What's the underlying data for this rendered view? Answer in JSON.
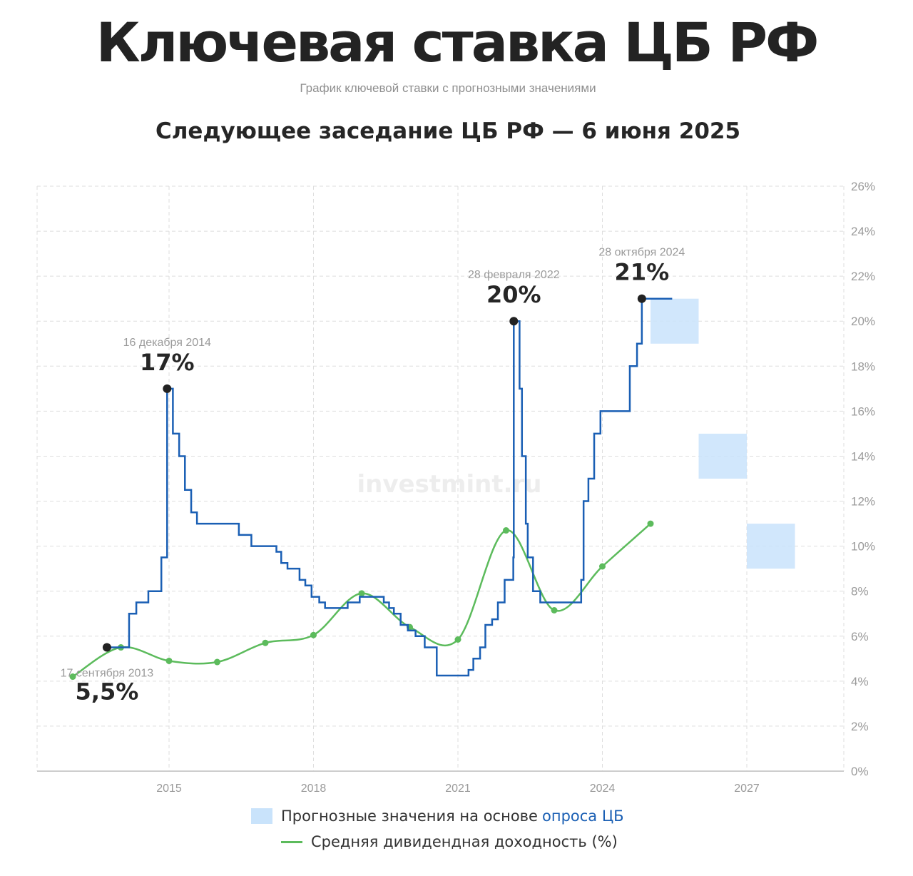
{
  "header": {
    "title": "Ключевая ставка ЦБ РФ",
    "subtitle": "График ключевой ставки с прогнозными значениями",
    "meeting": "Следующее заседание ЦБ РФ — 6 июня 2025"
  },
  "watermark": "investmint.ru",
  "legend": {
    "forecast_label": "Прогнозные значения на основе",
    "forecast_link": "опроса ЦБ",
    "dividend_label": "Средняя дивидендная доходность (%)"
  },
  "colors": {
    "key_rate": "#1a5fb4",
    "dividend": "#5cbb5c",
    "forecast": "#c9e3fb",
    "grid": "#dedede"
  },
  "chart_data": {
    "type": "line",
    "x_range": [
      2013.0,
      2028.3
    ],
    "ylim": [
      0,
      26
    ],
    "x_ticks": [
      2015,
      2018,
      2021,
      2024,
      2027
    ],
    "y_ticks": [
      {
        "value": 0,
        "label": "0%"
      },
      {
        "value": 2,
        "label": "2%"
      },
      {
        "value": 4,
        "label": "4%"
      },
      {
        "value": 6,
        "label": "6%"
      },
      {
        "value": 8,
        "label": "8%"
      },
      {
        "value": 10,
        "label": "10%"
      },
      {
        "value": 12,
        "label": "12%"
      },
      {
        "value": 14,
        "label": "14%"
      },
      {
        "value": 16,
        "label": "16%"
      },
      {
        "value": 18,
        "label": "18%"
      },
      {
        "value": 20,
        "label": "20%"
      },
      {
        "value": 22,
        "label": "22%"
      },
      {
        "value": 24,
        "label": "24%"
      },
      {
        "value": 26,
        "label": "26%"
      }
    ],
    "grid": true,
    "y_axis_position": "right",
    "series": [
      {
        "type": "step",
        "values": [
          [
            2013.71,
            5.5
          ],
          [
            2014.17,
            7.0
          ],
          [
            2014.32,
            7.5
          ],
          [
            2014.57,
            8.0
          ],
          [
            2014.84,
            9.5
          ],
          [
            2014.96,
            17.0
          ],
          [
            2015.08,
            15.0
          ],
          [
            2015.21,
            14.0
          ],
          [
            2015.33,
            12.5
          ],
          [
            2015.46,
            11.5
          ],
          [
            2015.58,
            11.0
          ],
          [
            2016.45,
            10.5
          ],
          [
            2016.71,
            10.0
          ],
          [
            2017.23,
            9.75
          ],
          [
            2017.33,
            9.25
          ],
          [
            2017.46,
            9.0
          ],
          [
            2017.71,
            8.5
          ],
          [
            2017.83,
            8.25
          ],
          [
            2017.96,
            7.75
          ],
          [
            2018.12,
            7.5
          ],
          [
            2018.24,
            7.25
          ],
          [
            2018.71,
            7.5
          ],
          [
            2018.96,
            7.75
          ],
          [
            2019.46,
            7.5
          ],
          [
            2019.57,
            7.25
          ],
          [
            2019.67,
            7.0
          ],
          [
            2019.81,
            6.5
          ],
          [
            2019.96,
            6.25
          ],
          [
            2020.12,
            6.0
          ],
          [
            2020.31,
            5.5
          ],
          [
            2020.56,
            4.25
          ],
          [
            2021.22,
            4.5
          ],
          [
            2021.32,
            5.0
          ],
          [
            2021.46,
            5.5
          ],
          [
            2021.57,
            6.5
          ],
          [
            2021.71,
            6.75
          ],
          [
            2021.83,
            7.5
          ],
          [
            2021.97,
            8.5
          ],
          [
            2022.15,
            9.5
          ],
          [
            2022.16,
            20.0
          ],
          [
            2022.28,
            17.0
          ],
          [
            2022.33,
            14.0
          ],
          [
            2022.41,
            11.0
          ],
          [
            2022.45,
            9.5
          ],
          [
            2022.56,
            8.0
          ],
          [
            2022.71,
            7.5
          ],
          [
            2023.56,
            8.5
          ],
          [
            2023.61,
            12.0
          ],
          [
            2023.71,
            13.0
          ],
          [
            2023.83,
            15.0
          ],
          [
            2023.96,
            16.0
          ],
          [
            2024.57,
            18.0
          ],
          [
            2024.72,
            19.0
          ],
          [
            2024.82,
            21.0
          ],
          [
            2025.45,
            21.0
          ]
        ]
      },
      {
        "name": "Средняя дивидендная доходность (%)",
        "type": "smooth",
        "values": [
          [
            2013.0,
            4.2
          ],
          [
            2014.0,
            5.5
          ],
          [
            2015.0,
            4.9
          ],
          [
            2016.0,
            4.85
          ],
          [
            2017.0,
            5.7
          ],
          [
            2018.0,
            6.05
          ],
          [
            2019.0,
            7.9
          ],
          [
            2020.0,
            6.4
          ],
          [
            2021.0,
            5.85
          ],
          [
            2022.0,
            10.7
          ],
          [
            2023.0,
            7.15
          ],
          [
            2024.0,
            9.1
          ],
          [
            2025.0,
            11.0
          ]
        ]
      }
    ],
    "forecast_ranges": [
      {
        "x": [
          2025.0,
          2026.0
        ],
        "y": [
          19,
          21
        ]
      },
      {
        "x": [
          2026.0,
          2027.0
        ],
        "y": [
          13,
          15
        ]
      },
      {
        "x": [
          2027.0,
          2028.0
        ],
        "y": [
          9,
          11
        ]
      }
    ],
    "annotations": [
      {
        "x": 2013.71,
        "y": 5.5,
        "date": "17 сентября 2013",
        "value": "5,5%",
        "below": true
      },
      {
        "x": 2014.96,
        "y": 17.0,
        "date": "16 декабря 2014",
        "value": "17%",
        "below": false
      },
      {
        "x": 2022.16,
        "y": 20.0,
        "date": "28 февраля 2022",
        "value": "20%",
        "below": false
      },
      {
        "x": 2024.82,
        "y": 21.0,
        "date": "28 октября 2024",
        "value": "21%",
        "below": false
      }
    ]
  }
}
